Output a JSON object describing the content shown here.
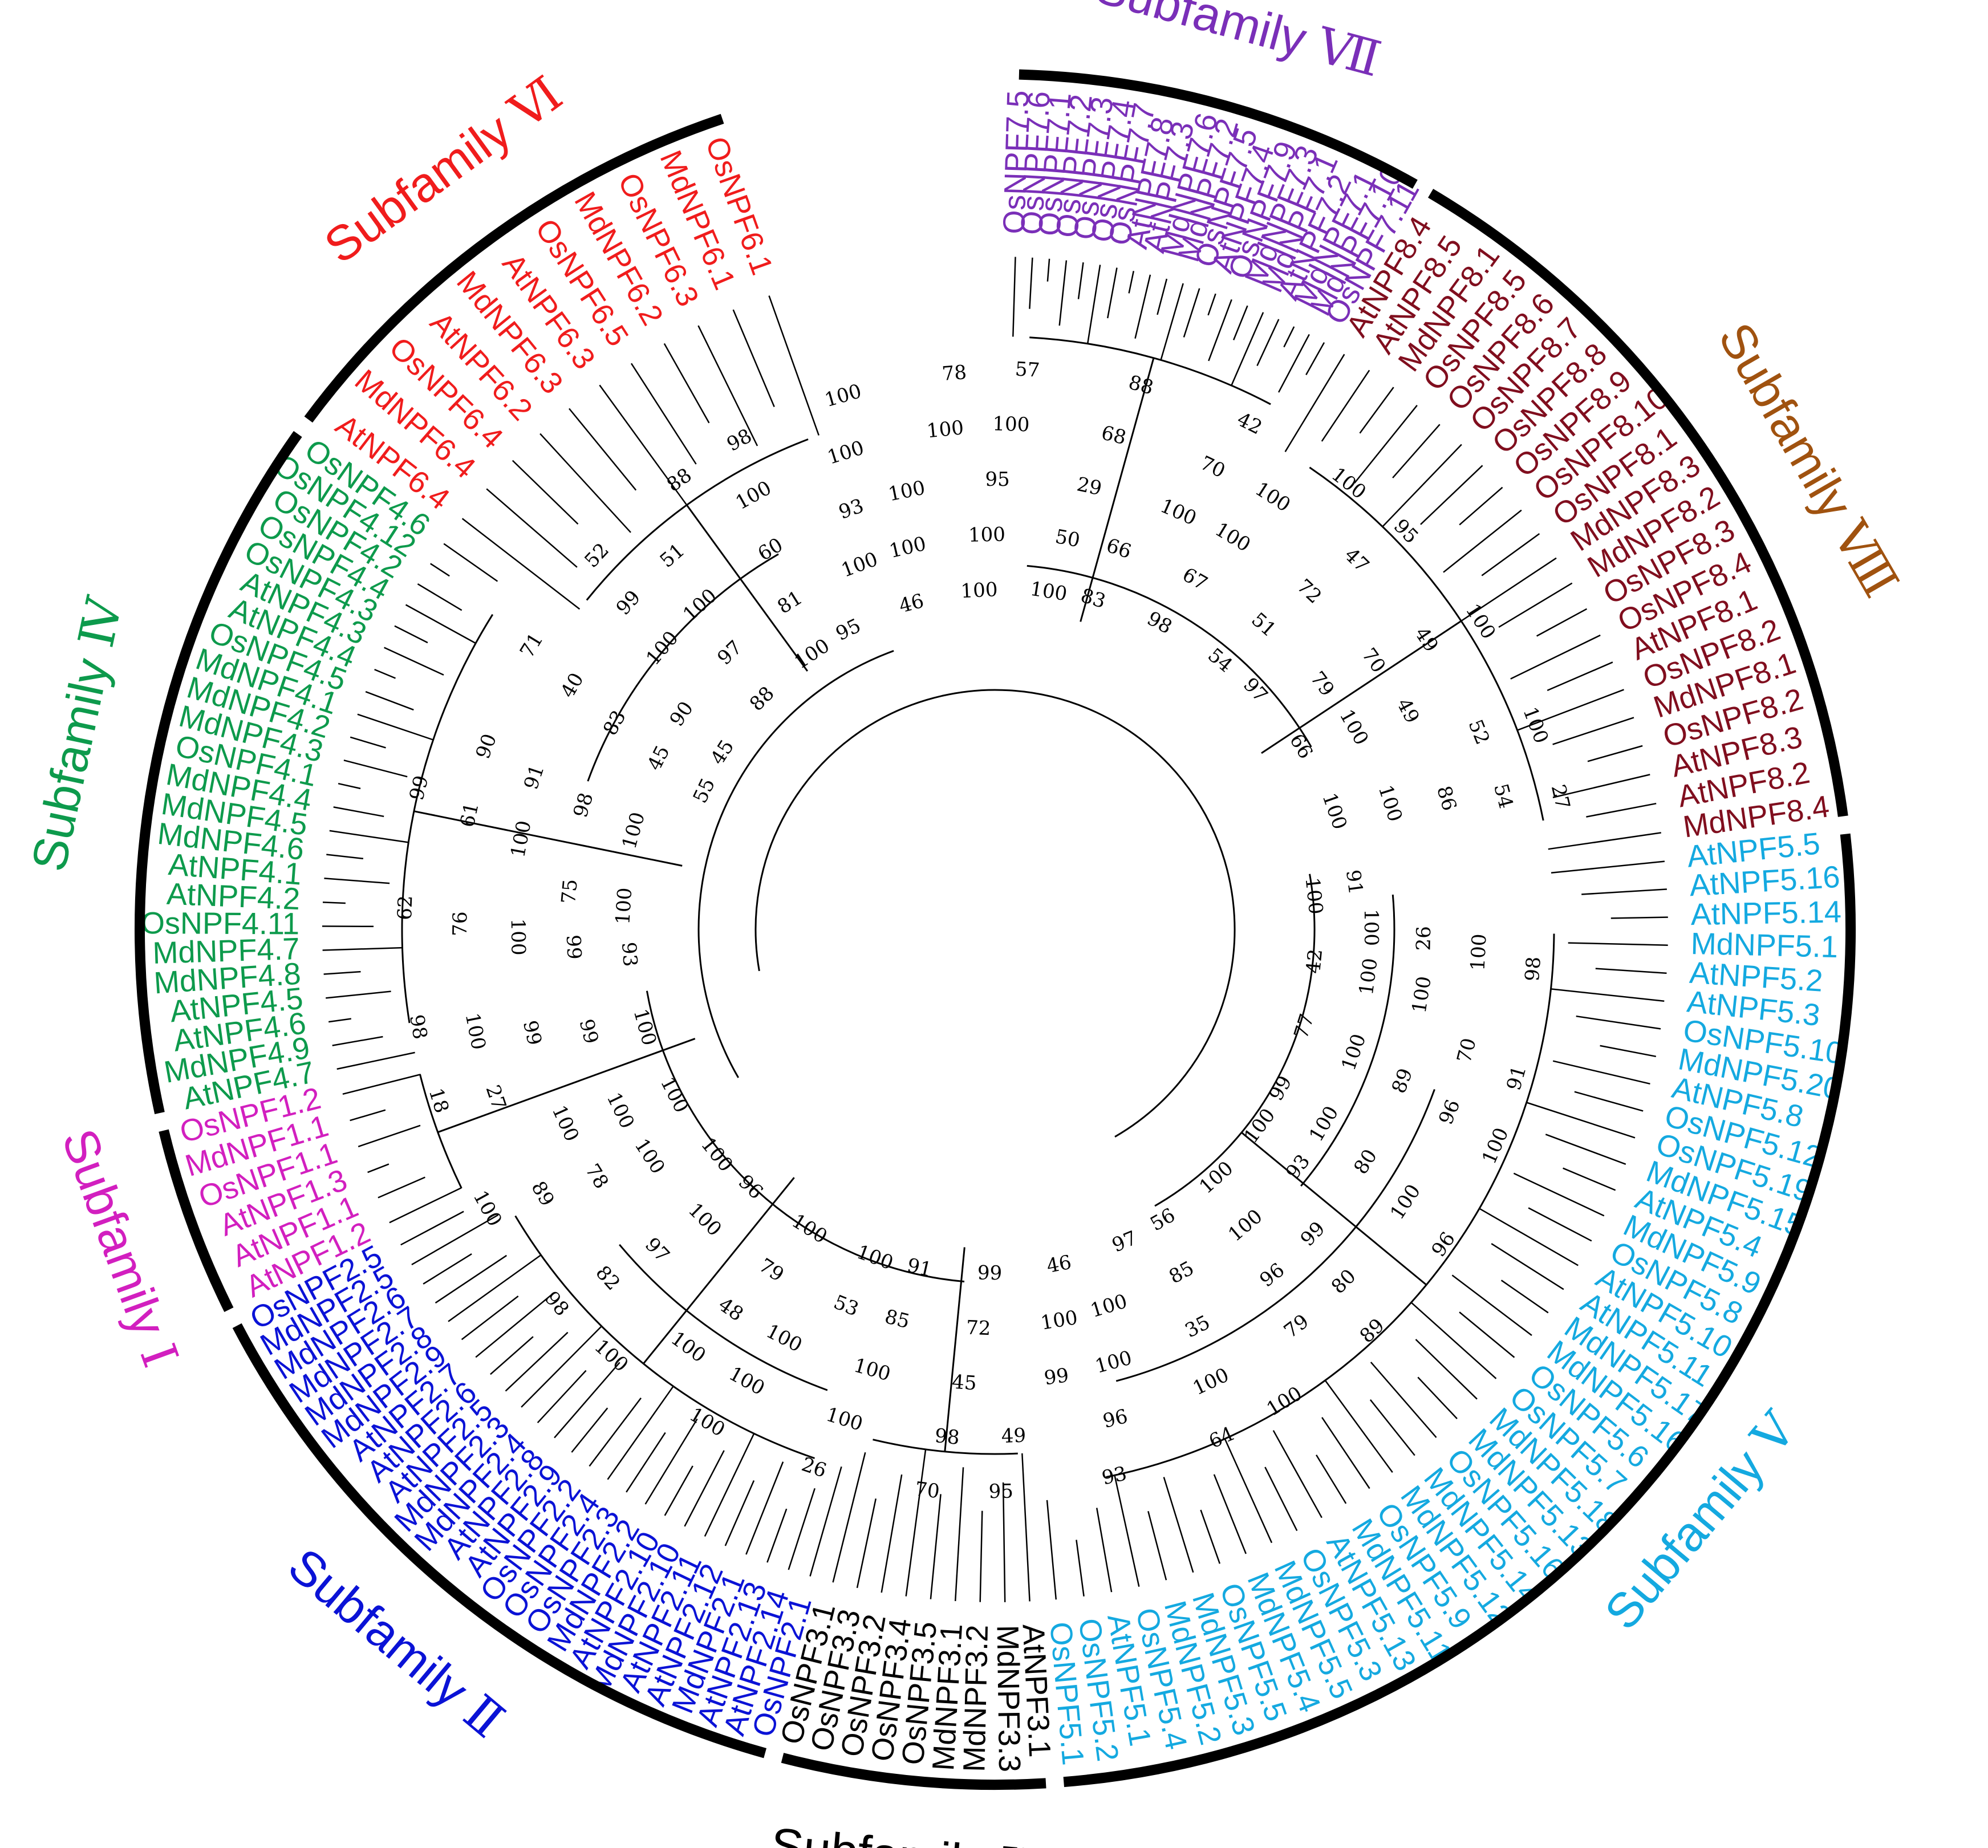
{
  "subfamilies": [
    {
      "key": "I",
      "name": "Subfamily",
      "numeral": "Ⅰ",
      "color": "#d21fbf",
      "leaves": [
        "AtNPF1.2",
        "AtNPF1.1",
        "AtNPF1.3",
        "OsNPF1.1",
        "MdNPF1.1",
        "OsNPF1.2"
      ]
    },
    {
      "key": "II",
      "name": "Subfamily",
      "numeral": "Ⅱ",
      "color": "#0a12d6",
      "leaves": [
        "OsNPF2.1",
        "AtNPF2.14",
        "AtNPF2.13",
        "MdNPF2.1",
        "AtNPF2.12",
        "AtNPF2.11",
        "MdNPF2.10",
        "AtNPF2.10",
        "MdNPF2.2",
        "OsNPF2.3",
        "OsNPF2.4",
        "OsNPF2.2",
        "AtNPF2.9",
        "AtNPF2.8",
        "MdNPF2.4",
        "MdNPF2.3",
        "AtNPF2.5",
        "AtNPF2.6",
        "AtNPF2.7",
        "MdNPF2.9",
        "MdNPF2.8",
        "MdNPF2.7",
        "MdNPF2.6",
        "MdNPF2.5",
        "OsNPF2.5"
      ]
    },
    {
      "key": "III",
      "name": "Subfamily",
      "numeral": "III",
      "color": "#000000",
      "leaves": [
        "AtNPF3.1",
        "MdNPF3.3",
        "MdNPF3.2",
        "MdNPF3.1",
        "OsNPF3.5",
        "OsNPF3.4",
        "OsNPF3.2",
        "OsNPF3.3",
        "OsNPF3.1"
      ]
    },
    {
      "key": "IV",
      "name": "Subfamily",
      "numeral": "Ⅳ",
      "color": "#0d9a4c",
      "leaves": [
        "AtNPF4.7",
        "MdNPF4.9",
        "AtNPF4.6",
        "AtNPF4.5",
        "MdNPF4.8",
        "MdNPF4.7",
        "OsNPF4.11",
        "AtNPF4.2",
        "AtNPF4.1",
        "MdNPF4.6",
        "MdNPF4.5",
        "MdNPF4.4",
        "OsNPF4.1",
        "MdNPF4.3",
        "MdNPF4.2",
        "MdNPF4.1",
        "OsNPF4.5",
        "AtNPF4.4",
        "AtNPF4.3",
        "OsNPF4.3",
        "OsNPF4.4",
        "OsNPF4.2",
        "OsNPF4.12",
        "OsNPF4.6"
      ]
    },
    {
      "key": "V",
      "name": "Subfamily",
      "numeral": "Ⅴ",
      "color": "#14a9e0",
      "leaves": [
        "AtNPF5.5",
        "AtNPF5.16",
        "AtNPF5.14",
        "MdNPF5.1",
        "AtNPF5.2",
        "AtNPF5.3",
        "OsNPF5.10",
        "MdNPF5.20",
        "AtNPF5.8",
        "OsNPF5.12",
        "OsNPF5.19",
        "MdNPF5.15",
        "AtNPF5.4",
        "MdNPF5.9",
        "OsNPF5.8",
        "AtNPF5.10",
        "AtNPF5.11",
        "MdNPF5.17",
        "MdNPF5.16",
        "OsNPF5.6",
        "OsNPF5.7",
        "MdNPF5.18",
        "MdNPF5.13",
        "OsNPF5.16",
        "MdNPF5.14",
        "MdNPF5.12",
        "OsNPF5.9",
        "MdNPF5.11",
        "AtNPF5.13",
        "OsNPF5.3",
        "MdNPF5.5",
        "MdNPF5.4",
        "OsNPF5.5",
        "MdNPF5.3",
        "MdNPF5.2",
        "OsNPF5.4",
        "AtNPF5.1",
        "OsNPF5.2",
        "OsNPF5.1"
      ]
    },
    {
      "key": "VI",
      "name": "Subfamily",
      "numeral": "Ⅵ",
      "color": "#f01c1c",
      "leaves": [
        "AtNPF6.4",
        "MdNPF6.4",
        "OsNPF6.4",
        "AtNPF6.2",
        "MdNPF6.3",
        "AtNPF6.3",
        "OsNPF6.5",
        "MdNPF6.2",
        "OsNPF6.3",
        "MdNPF6.1",
        "OsNPF6.1"
      ]
    },
    {
      "key": "VII",
      "name": "Subfamily",
      "numeral": "Ⅶ",
      "color": "#7a2fb8",
      "leaves": [
        "OsNPF7.5",
        "OsNPF7.6",
        "OsNPF7.1",
        "OsNPF7.2",
        "OsNPF7.3",
        "OsNPF7.4",
        "OsNPF7.7",
        "AtNPF7.8",
        "AtNPF7.3",
        "MdNPF7.6",
        "MdNPF7.2",
        "OsNPF7.5",
        "AtNPF7.4",
        "OsNPF7.9",
        "MdNPF7.3",
        "MdNPF7.1",
        "AtNPF7.2",
        "MdNPF7.1",
        "MdNPF7.10",
        "OsNPF7.11"
      ]
    },
    {
      "key": "VIII",
      "name": "Subfamily",
      "numeral": "Ⅷ",
      "color": "#a0520f",
      "leaf_color": "#800e1e",
      "leaves": [
        "AtNPF8.4",
        "AtNPF8.5",
        "MdNPF8.1",
        "OsNPF8.5",
        "OsNPF8.6",
        "OsNPF8.7",
        "OsNPF8.8",
        "OsNPF8.9",
        "OsNPF8.10",
        "OsNPF8.1",
        "MdNPF8.3",
        "MdNPF8.2",
        "OsNPF8.3",
        "OsNPF8.4",
        "AtNPF8.1",
        "OsNPF8.2",
        "MdNPF8.1",
        "OsNPF8.2",
        "AtNPF8.3",
        "AtNPF8.2",
        "MdNPF8.4"
      ]
    }
  ],
  "bootstrap_values": [
    "100",
    "100",
    "26",
    "100",
    "98",
    "42",
    "100",
    "100",
    "70",
    "91",
    "77",
    "100",
    "89",
    "96",
    "100",
    "99",
    "100",
    "80",
    "100",
    "96",
    "100",
    "93",
    "99",
    "80",
    "89",
    "100",
    "100",
    "96",
    "79",
    "100",
    "56",
    "85",
    "35",
    "100",
    "64",
    "97",
    "100",
    "100",
    "96",
    "93",
    "46",
    "100",
    "99",
    "49",
    "95",
    "99",
    "72",
    "45",
    "98",
    "70",
    "91",
    "85",
    "100",
    "100",
    "26",
    "100",
    "53",
    "100",
    "100",
    "100",
    "100",
    "79",
    "48",
    "100",
    "100",
    "96",
    "100",
    "97",
    "82",
    "98",
    "100",
    "100",
    "78",
    "89",
    "100",
    "100",
    "100",
    "100",
    "27",
    "18",
    "100",
    "99",
    "99",
    "100",
    "98",
    "93",
    "99",
    "100",
    "76",
    "62",
    "100",
    "75",
    "100",
    "61",
    "99",
    "100",
    "98",
    "91",
    "90",
    "55",
    "45",
    "83",
    "40",
    "71",
    "45",
    "90",
    "100",
    "99",
    "52",
    "88",
    "97",
    "100",
    "51",
    "88",
    "100",
    "81",
    "60",
    "100",
    "98",
    "95",
    "100",
    "93",
    "100",
    "100",
    "46",
    "100",
    "100",
    "100",
    "78",
    "100",
    "100",
    "95",
    "100",
    "57",
    "100",
    "50",
    "29",
    "68",
    "88",
    "83",
    "66",
    "100",
    "70",
    "42",
    "98",
    "67",
    "100",
    "100",
    "100",
    "54",
    "51",
    "72",
    "47",
    "95",
    "97",
    "79",
    "70",
    "49",
    "100",
    "66",
    "100",
    "49",
    "52",
    "100",
    "100",
    "100",
    "86",
    "54",
    "27",
    "91"
  ]
}
